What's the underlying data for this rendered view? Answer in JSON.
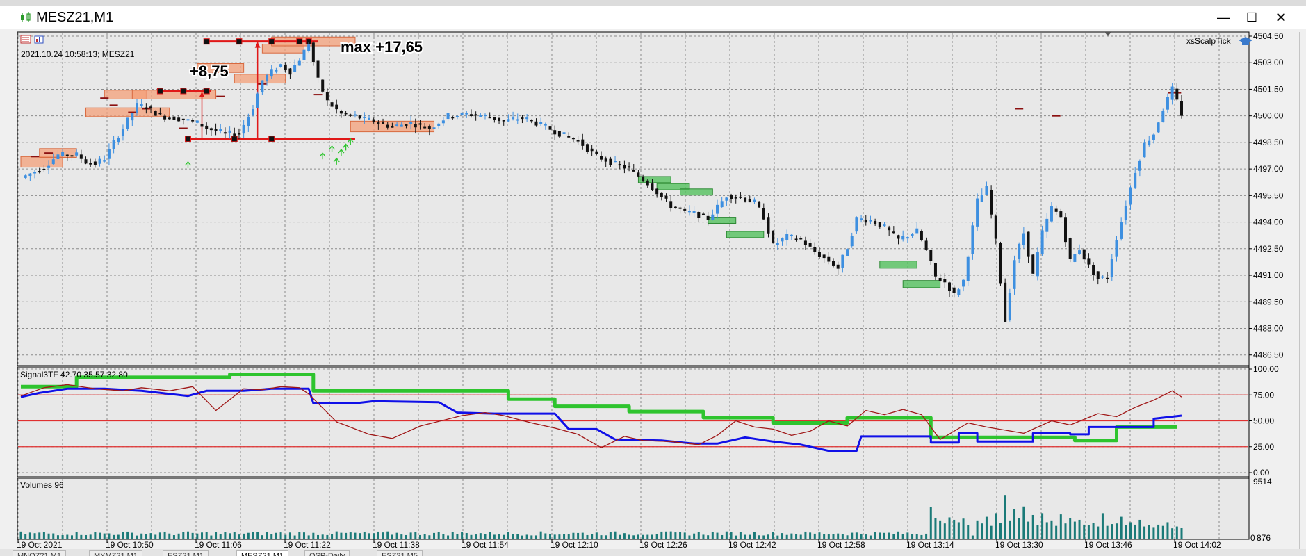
{
  "window": {
    "title": "MESZ21,M1",
    "minimize_glyph": "—",
    "maximize_glyph": "☐",
    "close_glyph": "✕"
  },
  "tabs": [
    {
      "label": "MNQZ21,M1",
      "active": false
    },
    {
      "label": "MYMZ21,M1",
      "active": false
    },
    {
      "label": "ESZ21,M1",
      "active": false
    },
    {
      "label": "MESZ21,M1",
      "active": true
    },
    {
      "label": "QSP-Daily",
      "active": false
    },
    {
      "label": "ESZ21,M5",
      "active": false
    }
  ],
  "price_panel": {
    "info_line": "2021.10.24 10:58:13; MESZ21",
    "indicator_label": "xsScalpTick",
    "annotation_1": "+8,75",
    "annotation_2": "max +17,65",
    "y_ticks": [
      "4504.50",
      "4503.00",
      "4501.50",
      "4500.00",
      "4498.50",
      "4497.00",
      "4495.50",
      "4494.00",
      "4492.50",
      "4491.00",
      "4489.50",
      "4488.00",
      "4486.50"
    ],
    "colors": {
      "bull": "#3d8fe0",
      "bear": "#111111",
      "red_marker": "#e01818",
      "orange_zone": "#f4a07a",
      "green_zone": "#4bbf55"
    }
  },
  "signal_panel": {
    "label": "Signal3TF 42.70 35.57 32.80",
    "y_ticks": [
      "100.00",
      "75.00",
      "50.00",
      "25.00",
      "0.00"
    ],
    "levels": [
      75,
      50,
      25
    ],
    "colors": {
      "green": "#2ec42e",
      "blue": "#1010e8",
      "darkred": "#a01818",
      "level": "#e03030"
    }
  },
  "volume_panel": {
    "label": "Volumes 96",
    "y_ticks": [
      "9514",
      "876"
    ],
    "zero_label": "0",
    "color": "#1a7a78"
  },
  "x_ticks": [
    "19 Oct 2021",
    "19 Oct 10:50",
    "19 Oct 11:06",
    "19 Oct 11:22",
    "19 Oct 11:38",
    "19 Oct 11:54",
    "19 Oct 12:10",
    "19 Oct 12:26",
    "19 Oct 12:42",
    "19 Oct 12:58",
    "19 Oct 13:14",
    "19 Oct 13:30",
    "19 Oct 13:46",
    "19 Oct 14:02"
  ],
  "chart_data": [
    {
      "type": "candlestick",
      "symbol": "MESZ21",
      "timeframe": "M1",
      "ylim": [
        4485.9,
        4504.5
      ],
      "key_levels": {
        "entry_low": 4498.7,
        "first_target": 4501.4,
        "max": 4504.2
      },
      "close_path": [
        [
          0,
          4496.5
        ],
        [
          5,
          4497.1
        ],
        [
          8,
          4497.8
        ],
        [
          12,
          4497.8
        ],
        [
          14,
          4497.4
        ],
        [
          16,
          4497.3
        ],
        [
          18,
          4497.6
        ],
        [
          20,
          4498.5
        ],
        [
          22,
          4499.3
        ],
        [
          25,
          4500.6
        ],
        [
          27,
          4500.5
        ],
        [
          30,
          4500.0
        ],
        [
          35,
          4499.8
        ],
        [
          38,
          4499.6
        ],
        [
          40,
          4499.3
        ],
        [
          44,
          4499.0
        ],
        [
          47,
          4499.0
        ],
        [
          50,
          4500.5
        ],
        [
          52,
          4502.0
        ],
        [
          54,
          4502.5
        ],
        [
          56,
          4502.9
        ],
        [
          58,
          4502.5
        ],
        [
          60,
          4503.2
        ],
        [
          62,
          4504.1
        ],
        [
          64,
          4502.0
        ],
        [
          66,
          4500.8
        ],
        [
          69,
          4500.1
        ],
        [
          72,
          4500.0
        ],
        [
          74,
          4499.8
        ],
        [
          76,
          4499.7
        ],
        [
          78,
          4499.5
        ],
        [
          80,
          4499.4
        ],
        [
          84,
          4499.6
        ],
        [
          88,
          4499.3
        ],
        [
          92,
          4500.0
        ],
        [
          96,
          4500.1
        ],
        [
          100,
          4500.0
        ],
        [
          104,
          4499.7
        ],
        [
          108,
          4499.9
        ],
        [
          112,
          4499.5
        ],
        [
          116,
          4499.0
        ],
        [
          120,
          4498.6
        ],
        [
          124,
          4497.7
        ],
        [
          128,
          4497.3
        ],
        [
          131,
          4497.0
        ],
        [
          135,
          4496.2
        ],
        [
          137,
          4495.7
        ],
        [
          140,
          4494.9
        ],
        [
          143,
          4494.6
        ],
        [
          145,
          4494.5
        ],
        [
          148,
          4494.2
        ],
        [
          152,
          4495.5
        ],
        [
          155,
          4495.4
        ],
        [
          158,
          4495.1
        ],
        [
          160,
          4494.3
        ],
        [
          162,
          4492.7
        ],
        [
          165,
          4493.2
        ],
        [
          168,
          4493.0
        ],
        [
          171,
          4492.3
        ],
        [
          174,
          4491.8
        ],
        [
          176,
          4491.4
        ],
        [
          178,
          4492.6
        ],
        [
          180,
          4494.2
        ],
        [
          183,
          4494.1
        ],
        [
          186,
          4493.7
        ],
        [
          189,
          4493.0
        ],
        [
          193,
          4493.5
        ],
        [
          195,
          4492.4
        ],
        [
          197,
          4490.9
        ],
        [
          199,
          4490.6
        ],
        [
          201,
          4489.9
        ],
        [
          203,
          4490.7
        ],
        [
          206,
          4495.2
        ],
        [
          208,
          4495.9
        ],
        [
          210,
          4492.9
        ],
        [
          212,
          4488.4
        ],
        [
          214,
          4491.9
        ],
        [
          216,
          4493.4
        ],
        [
          218,
          4491.0
        ],
        [
          220,
          4493.4
        ],
        [
          222,
          4494.8
        ],
        [
          224,
          4494.3
        ],
        [
          226,
          4491.8
        ],
        [
          228,
          4492.5
        ],
        [
          230,
          4491.5
        ],
        [
          232,
          4490.8
        ],
        [
          234,
          4490.9
        ],
        [
          236,
          4493.1
        ],
        [
          238,
          4495.0
        ],
        [
          240,
          4496.9
        ],
        [
          242,
          4498.4
        ],
        [
          244,
          4499.0
        ],
        [
          246,
          4500.4
        ],
        [
          248,
          4501.5
        ],
        [
          250,
          4500.1
        ]
      ]
    },
    {
      "type": "line",
      "name": "Signal3TF",
      "ylim": [
        0,
        100
      ],
      "series": [
        {
          "name": "green",
          "values": [
            [
              0,
              83
            ],
            [
              12,
              83
            ],
            [
              12,
              92
            ],
            [
              45,
              92
            ],
            [
              45,
              95
            ],
            [
              63,
              95
            ],
            [
              63,
              79
            ],
            [
              105,
              79
            ],
            [
              105,
              71
            ],
            [
              115,
              71
            ],
            [
              115,
              64
            ],
            [
              131,
              64
            ],
            [
              131,
              59
            ],
            [
              147,
              59
            ],
            [
              147,
              53
            ],
            [
              162,
              53
            ],
            [
              162,
              48
            ],
            [
              178,
              48
            ],
            [
              178,
              53
            ],
            [
              196,
              53
            ],
            [
              196,
              34
            ],
            [
              227,
              34
            ],
            [
              227,
              31
            ],
            [
              236,
              31
            ],
            [
              236,
              44
            ],
            [
              249,
              44
            ]
          ]
        },
        {
          "name": "blue",
          "values": [
            [
              0,
              73
            ],
            [
              4,
              77
            ],
            [
              10,
              81
            ],
            [
              18,
              81
            ],
            [
              26,
              79
            ],
            [
              36,
              74
            ],
            [
              40,
              79
            ],
            [
              48,
              79
            ],
            [
              54,
              81
            ],
            [
              62,
              81
            ],
            [
              63,
              67
            ],
            [
              72,
              67
            ],
            [
              76,
              69
            ],
            [
              90,
              68
            ],
            [
              94,
              58
            ],
            [
              102,
              57
            ],
            [
              110,
              57
            ],
            [
              115,
              57
            ],
            [
              118,
              42
            ],
            [
              124,
              42
            ],
            [
              128,
              32
            ],
            [
              138,
              31
            ],
            [
              145,
              28
            ],
            [
              150,
              28
            ],
            [
              156,
              34
            ],
            [
              162,
              30
            ],
            [
              168,
              27
            ],
            [
              174,
              21
            ],
            [
              180,
              21
            ],
            [
              181,
              35
            ],
            [
              196,
              35
            ],
            [
              196,
              29
            ],
            [
              202,
              29
            ],
            [
              202,
              38
            ],
            [
              206,
              38
            ],
            [
              206,
              30
            ],
            [
              218,
              30
            ],
            [
              218,
              38
            ],
            [
              226,
              38
            ],
            [
              226,
              37
            ],
            [
              230,
              37
            ],
            [
              230,
              44
            ],
            [
              244,
              44
            ],
            [
              244,
              52
            ],
            [
              250,
              55
            ]
          ]
        },
        {
          "name": "darkred",
          "values": [
            [
              0,
              74
            ],
            [
              5,
              82
            ],
            [
              10,
              85
            ],
            [
              16,
              81
            ],
            [
              22,
              79
            ],
            [
              26,
              82
            ],
            [
              32,
              79
            ],
            [
              37,
              83
            ],
            [
              42,
              60
            ],
            [
              48,
              81
            ],
            [
              52,
              80
            ],
            [
              56,
              83
            ],
            [
              60,
              82
            ],
            [
              62,
              76
            ],
            [
              68,
              49
            ],
            [
              75,
              37
            ],
            [
              80,
              33
            ],
            [
              86,
              45
            ],
            [
              95,
              55
            ],
            [
              100,
              58
            ],
            [
              104,
              55
            ],
            [
              110,
              48
            ],
            [
              115,
              43
            ],
            [
              120,
              37
            ],
            [
              125,
              24
            ],
            [
              130,
              35
            ],
            [
              134,
              31
            ],
            [
              140,
              30
            ],
            [
              146,
              27
            ],
            [
              150,
              36
            ],
            [
              154,
              50
            ],
            [
              158,
              44
            ],
            [
              162,
              42
            ],
            [
              166,
              36
            ],
            [
              170,
              40
            ],
            [
              174,
              50
            ],
            [
              178,
              45
            ],
            [
              182,
              60
            ],
            [
              186,
              56
            ],
            [
              190,
              61
            ],
            [
              194,
              56
            ],
            [
              198,
              32
            ],
            [
              204,
              48
            ],
            [
              208,
              44
            ],
            [
              212,
              41
            ],
            [
              216,
              38
            ],
            [
              222,
              50
            ],
            [
              226,
              46
            ],
            [
              232,
              57
            ],
            [
              236,
              54
            ],
            [
              240,
              63
            ],
            [
              244,
              70
            ],
            [
              248,
              79
            ],
            [
              250,
              73
            ]
          ]
        }
      ]
    },
    {
      "type": "bar",
      "name": "Volumes",
      "ylim": [
        0,
        9514
      ],
      "values": [
        [
          196,
          5200
        ],
        [
          197,
          3400
        ],
        [
          198,
          3000
        ],
        [
          199,
          2500
        ],
        [
          200,
          3500
        ],
        [
          201,
          3100
        ],
        [
          202,
          2700
        ],
        [
          203,
          3300
        ],
        [
          204,
          2200
        ],
        [
          206,
          3000
        ],
        [
          207,
          2500
        ],
        [
          208,
          3600
        ],
        [
          209,
          2100
        ],
        [
          210,
          4200
        ],
        [
          211,
          2600
        ],
        [
          212,
          7200
        ],
        [
          213,
          3000
        ],
        [
          214,
          4900
        ],
        [
          215,
          3400
        ],
        [
          216,
          5300
        ],
        [
          217,
          2800
        ],
        [
          218,
          3900
        ],
        [
          219,
          2200
        ],
        [
          220,
          4200
        ],
        [
          221,
          2700
        ],
        [
          222,
          3000
        ],
        [
          223,
          2100
        ],
        [
          224,
          4000
        ],
        [
          225,
          2500
        ],
        [
          226,
          3400
        ],
        [
          227,
          2800
        ],
        [
          228,
          3100
        ],
        [
          229,
          2300
        ],
        [
          230,
          2200
        ],
        [
          231,
          2600
        ],
        [
          232,
          2000
        ],
        [
          233,
          4200
        ],
        [
          234,
          2100
        ],
        [
          235,
          2400
        ],
        [
          236,
          2500
        ],
        [
          237,
          3600
        ],
        [
          238,
          2200
        ],
        [
          239,
          2700
        ],
        [
          240,
          2300
        ],
        [
          241,
          3100
        ],
        [
          242,
          2000
        ],
        [
          243,
          2200
        ],
        [
          244,
          1900
        ],
        [
          245,
          2300
        ],
        [
          246,
          2100
        ],
        [
          247,
          2700
        ],
        [
          248,
          1700
        ],
        [
          249,
          2000
        ],
        [
          250,
          1800
        ]
      ]
    }
  ]
}
